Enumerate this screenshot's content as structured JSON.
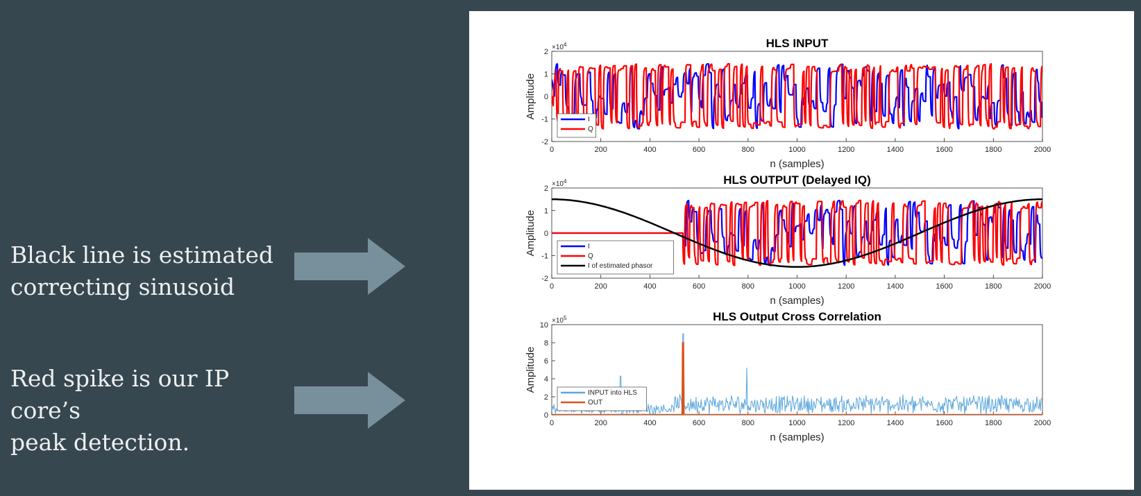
{
  "notes": [
    {
      "lines": [
        "Black line is estimated",
        "correcting sinusoid"
      ]
    },
    {
      "lines": [
        "Red spike is our IP core’s",
        "peak detection."
      ]
    }
  ],
  "colors": {
    "background": "#37474f",
    "arrow": "#78909c",
    "note_text": "#eceff1",
    "I": "#0000ff",
    "Q": "#ff0000",
    "phasor": "#000000",
    "xcorr_input": "#5aa6dc",
    "xcorr_out": "#d9541a"
  },
  "chart_data": [
    {
      "type": "line",
      "title": "HLS INPUT",
      "xlabel": "n (samples)",
      "ylabel": "Amplitude",
      "multiplier": "×10",
      "multiplier_exp": "4",
      "xlim": [
        0,
        2000
      ],
      "ylim": [
        -2,
        2
      ],
      "xticks": [
        "0",
        "200",
        "400",
        "600",
        "800",
        "1000",
        "1200",
        "1400",
        "1600",
        "1800",
        "2000"
      ],
      "yticks": [
        "2",
        "1",
        "0",
        "-1",
        "-2"
      ],
      "legend": {
        "location": "bottom-left",
        "entries": [
          "I",
          "Q"
        ]
      },
      "series": [
        {
          "name": "I",
          "kind": "iq_I",
          "start": 0,
          "startlevel": 0.75
        },
        {
          "name": "Q",
          "kind": "iq_Q",
          "start": 0,
          "startlevel": 0
        }
      ]
    },
    {
      "type": "line",
      "title": "HLS OUTPUT (Delayed IQ)",
      "xlabel": "n (samples)",
      "ylabel": "Amplitude",
      "multiplier": "×10",
      "multiplier_exp": "4",
      "xlim": [
        0,
        2000
      ],
      "ylim": [
        -2,
        2
      ],
      "xticks": [
        "0",
        "200",
        "400",
        "600",
        "800",
        "1000",
        "1200",
        "1400",
        "1600",
        "1800",
        "2000"
      ],
      "yticks": [
        "2",
        "1",
        "0",
        "-1",
        "-2"
      ],
      "legend": {
        "location": "bottom-left",
        "entries": [
          "I",
          "Q",
          "I of estimated phasor"
        ]
      },
      "series": [
        {
          "name": "I",
          "kind": "iq_I",
          "start": 535,
          "startlevel": 0
        },
        {
          "name": "Q",
          "kind": "iq_Q",
          "start": 535,
          "startlevel": 0
        },
        {
          "name": "I of estimated phasor",
          "kind": "cos",
          "amplitude": 1.5,
          "period": 2000,
          "phase": 0
        }
      ]
    },
    {
      "type": "line",
      "title": "HLS Output Cross Correlation",
      "xlabel": "n (samples)",
      "ylabel": "Amplitude",
      "multiplier": "×10",
      "multiplier_exp": "5",
      "xlim": [
        0,
        2000
      ],
      "ylim": [
        0,
        10
      ],
      "xticks": [
        "0",
        "200",
        "400",
        "600",
        "800",
        "1000",
        "1200",
        "1400",
        "1600",
        "1800",
        "2000"
      ],
      "yticks": [
        "10",
        "8",
        "6",
        "4",
        "2",
        "0"
      ],
      "legend": {
        "location": "bottom-left",
        "entries": [
          "INPUT into HLS",
          "OUT"
        ]
      },
      "series": [
        {
          "name": "INPUT into HLS",
          "kind": "noise",
          "peaks": [
            [
              535,
              9.0
            ],
            [
              280,
              4.3
            ],
            [
              795,
              5.2
            ]
          ]
        },
        {
          "name": "OUT",
          "kind": "spike",
          "x": 535,
          "y": 8.0
        }
      ]
    }
  ]
}
